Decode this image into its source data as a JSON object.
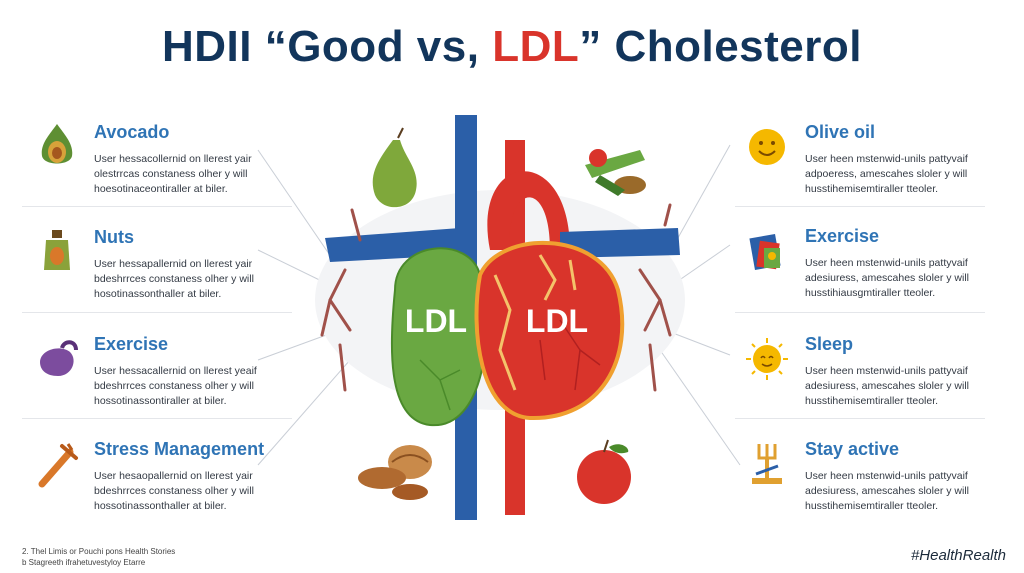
{
  "title": {
    "part1": "HDII “Good vs, ",
    "part2": "LDL",
    "part3": "” Cholesterol"
  },
  "heart": {
    "left_label": "LDL",
    "right_label": "LDL"
  },
  "left_items": [
    {
      "heading": "Avocado",
      "lines": [
        "User hessacollernid on llerest yair",
        "olestrrcas constaness olher y will",
        "hoesotinaceontiraller at biler."
      ],
      "icon": "avocado-icon"
    },
    {
      "heading": "Nuts",
      "lines": [
        "User hessapallernid on llerest yair",
        "bdeshrrces constaness olher y will",
        "hosotinassonthaller at biler."
      ],
      "icon": "bottle-icon"
    },
    {
      "heading": "Exercise",
      "lines": [
        "User hessacallernid on llerest yeaif",
        "bdeshrrces constaness olher y will",
        "hossotinassontiraller at biler."
      ],
      "icon": "kettlebell-icon"
    },
    {
      "heading": "Stress Management",
      "lines": [
        "User hesaopallernid on llerest yair",
        "bdeshrrces constaness olher y will",
        "hossotinassonthaller at biler."
      ],
      "icon": "dumbbell-icon"
    }
  ],
  "right_items": [
    {
      "heading": "Olive oil",
      "lines": [
        "User heen mstenwid-unils pattyvaif",
        "adpoeress, amescahes sloler y will",
        "husstihemisemtiraller tteoler."
      ],
      "icon": "smiley-icon"
    },
    {
      "heading": "Exercise",
      "lines": [
        "User heen mstenwid-unils pattyvaif",
        "adesiuress, amescahes sloler y will",
        "husstihiausgmtiraller tteoler."
      ],
      "icon": "book-icon"
    },
    {
      "heading": "Sleep",
      "lines": [
        "User heen mstenwid-unils pattyvaif",
        "adesiuress, amescahes sloler y will",
        "husstihemisemtiraller tteoler."
      ],
      "icon": "sun-icon"
    },
    {
      "heading": "Stay active",
      "lines": [
        "User heen mstenwid-unils pattyvaif",
        "adesiuress, amescahes sloler y will",
        "husstihemisemtiraller tteoler."
      ],
      "icon": "fork-icon"
    }
  ],
  "footer": {
    "line1": "2. Thel Limis or Pouchi pons Health Stories",
    "line2": "b Stagreeth ifrahetuvestyloy Etarre",
    "hashtag": "#HealthRealth"
  },
  "colors": {
    "title": "#12355b",
    "accent_red": "#d9342b",
    "heading_blue": "#2f74b5",
    "vessel_blue": "#2b5fa8",
    "good_green": "#6aa842"
  }
}
